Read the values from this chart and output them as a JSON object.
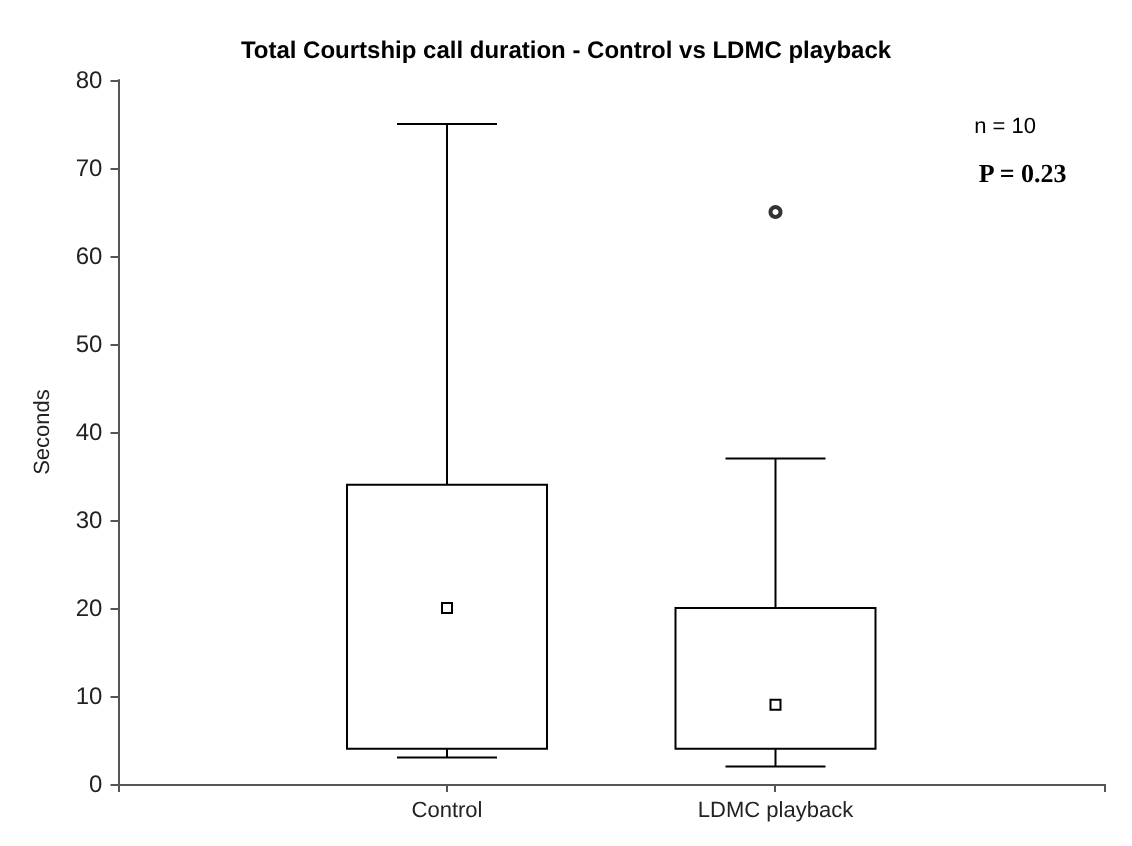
{
  "chart_data": {
    "type": "box",
    "title": "Total Courtship call duration - Control vs LDMC playback",
    "ylabel": "Seconds",
    "categories": [
      "Control",
      "LDMC playback"
    ],
    "boxes": [
      {
        "low": 3,
        "q1": 4,
        "median": 20,
        "q3": 34,
        "high": 75
      },
      {
        "low": 2,
        "q1": 4,
        "median": 9,
        "q3": 20,
        "high": 37,
        "outliers": [
          65
        ]
      }
    ],
    "ylim": [
      0,
      80
    ],
    "yticks": [
      0,
      10,
      20,
      30,
      40,
      50,
      60,
      70,
      80
    ],
    "grid": false,
    "annotations": [
      "n = 10",
      "P = 0.23"
    ]
  }
}
